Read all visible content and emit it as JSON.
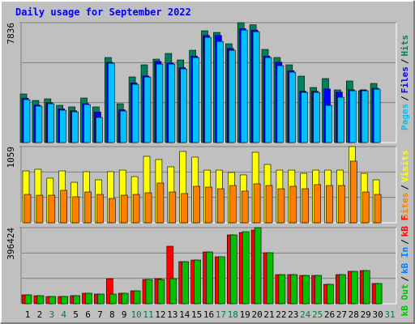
{
  "title": "Daily usage for September 2022",
  "weekend_color": "#008040",
  "day_color": "#000000",
  "weekend_days": [
    2,
    3,
    9,
    10,
    16,
    17,
    23,
    24,
    30
  ],
  "legend_separator": "/",
  "chart_data": [
    {
      "type": "bar",
      "ylim": [
        0,
        7836
      ],
      "yticks": [
        7836
      ],
      "series": [
        {
          "name": "Hits",
          "color": "#00805c",
          "values": [
            3177,
            2753,
            2859,
            2436,
            2330,
            2912,
            2330,
            5560,
            2541,
            4289,
            5083,
            5453,
            5824,
            5400,
            6036,
            7307,
            7201,
            6459,
            7836,
            7700,
            6089,
            5560,
            5083,
            4342,
            3600,
            4183,
            3442,
            4024,
            3389,
            3865,
            null
          ]
        },
        {
          "name": "Files",
          "color": "#0000ff",
          "values": [
            2900,
            2450,
            2600,
            2200,
            2080,
            2550,
            2000,
            5250,
            2150,
            3900,
            4350,
            5300,
            5200,
            4900,
            5650,
            7000,
            7000,
            6150,
            7450,
            7350,
            5650,
            5250,
            4700,
            3350,
            3350,
            3500,
            3300,
            3450,
            3450,
            3550,
            null
          ]
        },
        {
          "name": "Pages",
          "color": "#00c0ff",
          "values": [
            2804,
            2381,
            2539,
            2116,
            2010,
            2486,
            1640,
            5184,
            2063,
            3809,
            4285,
            5131,
            5131,
            4814,
            5555,
            6877,
            6613,
            6031,
            7353,
            7247,
            5555,
            5026,
            4602,
            3280,
            3280,
            2433,
            2962,
            3386,
            3386,
            3491,
            null
          ]
        }
      ]
    },
    {
      "type": "bar",
      "ylim": [
        0,
        1059
      ],
      "yticks": [
        1059
      ],
      "series": [
        {
          "name": "Visits",
          "color": "#ffff00",
          "values": [
            721,
            744,
            620,
            721,
            563,
            710,
            597,
            710,
            732,
            642,
            924,
            879,
            778,
            992,
            913,
            732,
            732,
            699,
            665,
            980,
            811,
            732,
            732,
            687,
            732,
            732,
            732,
            1059,
            687,
            597,
            null
          ]
        },
        {
          "name": "Sites",
          "color": "#ff8000",
          "values": [
            394,
            383,
            383,
            451,
            361,
            428,
            394,
            338,
            383,
            394,
            417,
            552,
            428,
            406,
            507,
            496,
            473,
            518,
            440,
            541,
            518,
            473,
            507,
            473,
            530,
            518,
            518,
            857,
            428,
            394,
            null
          ]
        }
      ]
    },
    {
      "type": "bar",
      "ylim": [
        0,
        396424
      ],
      "yticks": [
        396424
      ],
      "categories": [
        "1",
        "2",
        "3",
        "4",
        "5",
        "6",
        "7",
        "8",
        "9",
        "10",
        "11",
        "12",
        "13",
        "14",
        "15",
        "16",
        "17",
        "18",
        "19",
        "20",
        "21",
        "22",
        "23",
        "24",
        "25",
        "26",
        "27",
        "28",
        "29",
        "30",
        "31"
      ],
      "series": [
        {
          "name": "kB F",
          "color": "#ff0000",
          "values": [
            46387,
            42170,
            37953,
            37953,
            42170,
            54821,
            50604,
            130727,
            54821,
            67472,
            126510,
            130727,
            299407,
            219284,
            227718,
            269888,
            244586,
            358445,
            371096,
            383747,
            265671,
            151812,
            151812,
            147595,
            147595,
            101208,
            151812,
            168680,
            172897,
            105425,
            null
          ]
        },
        {
          "name": "kB In",
          "color": "#0080ff",
          "values": [
            0,
            0,
            0,
            0,
            0,
            0,
            0,
            0,
            0,
            0,
            0,
            0,
            0,
            0,
            0,
            0,
            0,
            0,
            0,
            0,
            0,
            0,
            0,
            0,
            0,
            0,
            0,
            0,
            0,
            0,
            null
          ]
        },
        {
          "name": "kB Out",
          "color": "#00c000",
          "values": [
            46387,
            42170,
            37953,
            37953,
            42170,
            54821,
            50604,
            50604,
            54821,
            67472,
            126510,
            126510,
            130727,
            219284,
            227718,
            269888,
            244586,
            358445,
            375313,
            396424,
            265671,
            151812,
            151812,
            147595,
            147595,
            101208,
            151812,
            168680,
            172897,
            105425,
            null
          ]
        }
      ]
    }
  ]
}
